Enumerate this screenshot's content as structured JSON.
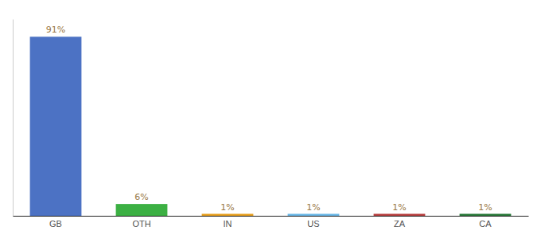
{
  "chart_data": {
    "type": "bar",
    "categories": [
      "GB",
      "OTH",
      "IN",
      "US",
      "ZA",
      "CA"
    ],
    "values": [
      91,
      6,
      1,
      1,
      1,
      1
    ],
    "value_labels": [
      "91%",
      "6%",
      "1%",
      "1%",
      "1%",
      "1%"
    ],
    "colors": [
      "#4C72C4",
      "#3CB043",
      "#E8A020",
      "#6BB8E8",
      "#B84040",
      "#2A7A3A"
    ],
    "ylim": [
      0,
      100
    ],
    "data_labels": true,
    "tick_labels": "x"
  }
}
